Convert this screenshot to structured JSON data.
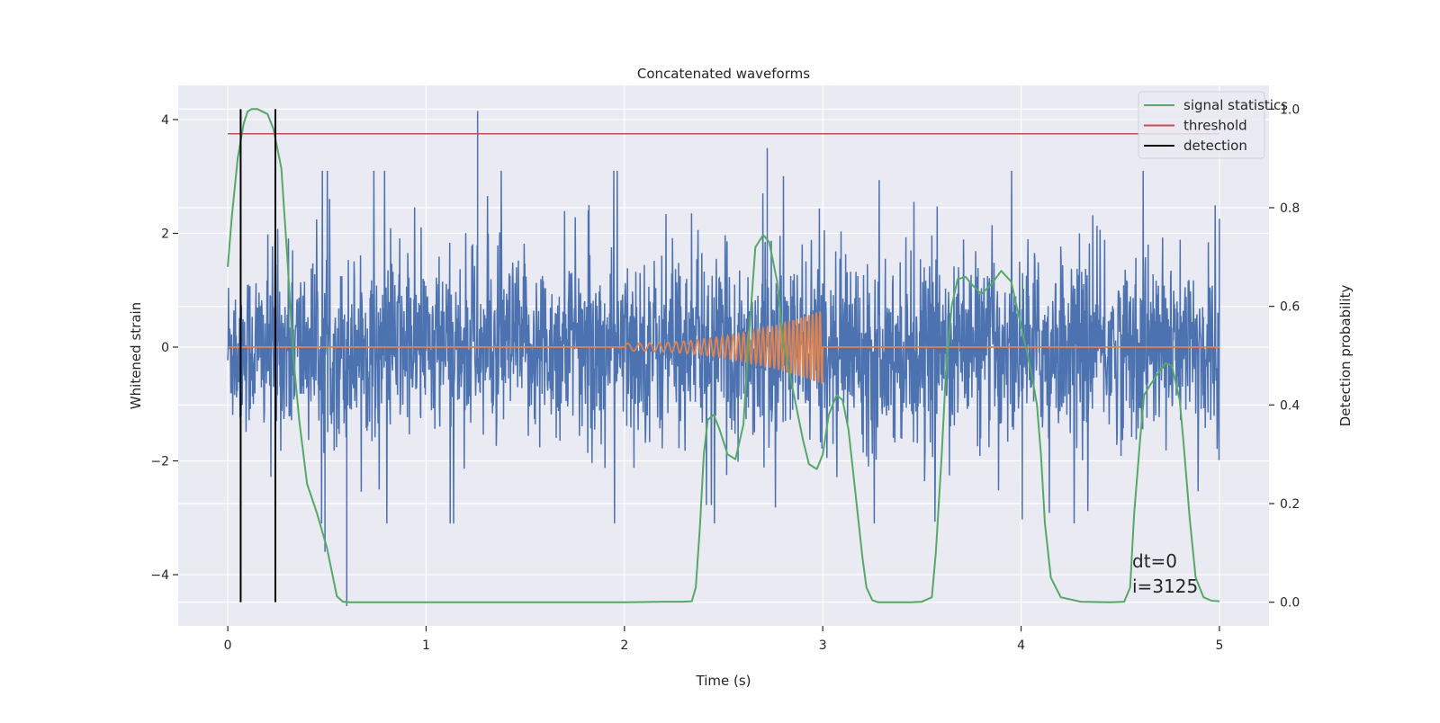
{
  "chart_data": {
    "type": "line",
    "title": "Concatenated waveforms",
    "xlabel": "Time (s)",
    "ylabel_left": "Whitened strain",
    "ylabel_right": "Detection probability",
    "xlim": [
      -0.25,
      5.25
    ],
    "ylim_left": [
      -4.9,
      4.6
    ],
    "ylim_right": [
      -0.048,
      1.048
    ],
    "x_ticks": [
      0,
      1,
      2,
      3,
      4,
      5
    ],
    "y_left_ticks": [
      -4,
      -2,
      0,
      2,
      4
    ],
    "y_left_tick_labels": [
      "−4",
      "−2",
      "0",
      "2",
      "4"
    ],
    "y_right_ticks": [
      0.0,
      0.2,
      0.4,
      0.6,
      0.8,
      1.0
    ],
    "y_right_tick_labels": [
      "0.0",
      "0.2",
      "0.4",
      "0.6",
      "0.8",
      "1.0"
    ],
    "grid": true,
    "legend_position": "top-right",
    "colors": {
      "background": "#eaeaf2",
      "grid": "#ffffff",
      "noise": "#4c72b0",
      "template": "#dd8452",
      "signal_statistics": "#55a868",
      "threshold": "#c44e52",
      "detection": "#000000"
    },
    "series": [
      {
        "name": "signal statistics",
        "axis": "right",
        "x": [
          0.0,
          0.02,
          0.05,
          0.08,
          0.1,
          0.12,
          0.15,
          0.2,
          0.23,
          0.27,
          0.3,
          0.33,
          0.36,
          0.4,
          0.45,
          0.5,
          0.55,
          0.58,
          0.62,
          0.8,
          1.0,
          1.5,
          2.0,
          2.2,
          2.3,
          2.34,
          2.36,
          2.38,
          2.4,
          2.42,
          2.45,
          2.48,
          2.52,
          2.56,
          2.6,
          2.63,
          2.66,
          2.7,
          2.73,
          2.77,
          2.8,
          2.85,
          2.9,
          2.93,
          2.97,
          3.0,
          3.03,
          3.07,
          3.1,
          3.13,
          3.16,
          3.2,
          3.22,
          3.25,
          3.28,
          3.3,
          3.35,
          3.45,
          3.5,
          3.55,
          3.57,
          3.6,
          3.62,
          3.65,
          3.68,
          3.72,
          3.75,
          3.8,
          3.85,
          3.9,
          3.95,
          4.0,
          4.05,
          4.08,
          4.1,
          4.12,
          4.15,
          4.2,
          4.3,
          4.45,
          4.52,
          4.55,
          4.57,
          4.6,
          4.62,
          4.65,
          4.7,
          4.73,
          4.76,
          4.8,
          4.82,
          4.85,
          4.88,
          4.92,
          4.96,
          5.0
        ],
        "y": [
          0.68,
          0.78,
          0.9,
          0.97,
          0.995,
          1.0,
          1.0,
          0.99,
          0.96,
          0.88,
          0.7,
          0.5,
          0.37,
          0.24,
          0.18,
          0.11,
          0.012,
          0.001,
          0.0,
          0.0,
          0.0,
          0.0,
          0.0,
          0.001,
          0.001,
          0.002,
          0.03,
          0.15,
          0.3,
          0.37,
          0.38,
          0.35,
          0.3,
          0.29,
          0.36,
          0.55,
          0.72,
          0.745,
          0.73,
          0.65,
          0.53,
          0.43,
          0.33,
          0.28,
          0.27,
          0.3,
          0.38,
          0.42,
          0.41,
          0.35,
          0.24,
          0.09,
          0.03,
          0.004,
          0.0,
          0.0,
          0.0,
          0.0,
          0.001,
          0.01,
          0.1,
          0.3,
          0.46,
          0.6,
          0.655,
          0.66,
          0.645,
          0.625,
          0.645,
          0.672,
          0.65,
          0.56,
          0.47,
          0.4,
          0.3,
          0.16,
          0.05,
          0.01,
          0.001,
          0.0,
          0.001,
          0.03,
          0.18,
          0.33,
          0.42,
          0.44,
          0.47,
          0.485,
          0.48,
          0.41,
          0.32,
          0.17,
          0.05,
          0.01,
          0.003,
          0.002
        ]
      },
      {
        "name": "threshold",
        "axis": "right",
        "x": [
          0.0,
          5.0
        ],
        "y": [
          0.95,
          0.95
        ]
      },
      {
        "name": "detection",
        "axis": "right",
        "type": "vertical_lines",
        "x": [
          0.065,
          0.24
        ],
        "y_range": [
          0.0,
          1.0
        ]
      }
    ],
    "unlabeled_series": [
      {
        "role": "whitened strain (noise + signal)",
        "axis": "left",
        "type": "dense_noise",
        "x_range": [
          0.0,
          5.0
        ],
        "typical_range": [
          -1.5,
          1.5
        ],
        "notable_peaks": [
          {
            "x": 1.26,
            "y": 4.15
          },
          {
            "x": 0.6,
            "y": -4.55
          },
          {
            "x": 2.72,
            "y": 3.5
          },
          {
            "x": 0.49,
            "y": -3.6
          }
        ]
      },
      {
        "role": "injected chirp template",
        "axis": "left",
        "type": "chirp",
        "x_range": [
          2.0,
          3.0
        ],
        "zero_elsewhere": true,
        "max_amplitude": 0.65
      }
    ],
    "annotations": [
      "dt=0",
      "i=3125"
    ]
  }
}
